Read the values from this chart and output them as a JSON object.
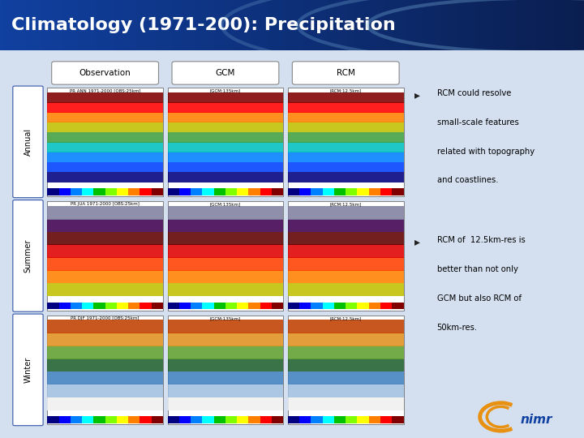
{
  "title": "Climatology (1971-200): Precipitation",
  "col_labels": [
    "Observation",
    "GCM",
    "RCM"
  ],
  "row_labels": [
    "Annual",
    "Summer",
    "Winter"
  ],
  "map_subtitles": [
    [
      "PR ANN 1971-2000 [OBS:25km]",
      "[GCM:135km]",
      "[RCM:12.5km]"
    ],
    [
      "PR JUA 1971-2000 [OBS:25km]",
      "[GCM:135km]",
      "[RCM:12.5km]"
    ],
    [
      "PR DJF 1971-2000 [OBS:25km]",
      "[GCM:135km]",
      "[RCM:12.5km]"
    ]
  ],
  "bullet1_lines": [
    "RCM could resolve",
    "small-scale features",
    "related with topography",
    "and coastlines."
  ],
  "bullet2_lines": [
    "RCM of  12.5km-res is",
    "better than not only",
    "GCM but also RCM of",
    "50km-res."
  ],
  "slide_bg": "#d4e0f0",
  "colorbar_colors": [
    "#000080",
    "#0000ff",
    "#0080ff",
    "#00ffff",
    "#00c000",
    "#80ff00",
    "#ffff00",
    "#ff8000",
    "#ff0000",
    "#800000"
  ],
  "nimr_arc_color": "#e89010",
  "nimr_text_color": "#1040a0",
  "map_colors": {
    "annual": [
      "#000080",
      "#0040ff",
      "#0080ff",
      "#00c0c0",
      "#40a040",
      "#c0c000",
      "#ff8000",
      "#ff0000",
      "#800000"
    ],
    "summer": [
      "#c0c000",
      "#ff8000",
      "#ff4000",
      "#e00000",
      "#600000",
      "#400050",
      "#8080a0"
    ],
    "winter": [
      "#f0f0f0",
      "#a0c0e0",
      "#4080c0",
      "#206030",
      "#60a030",
      "#e09020",
      "#c04000"
    ]
  }
}
